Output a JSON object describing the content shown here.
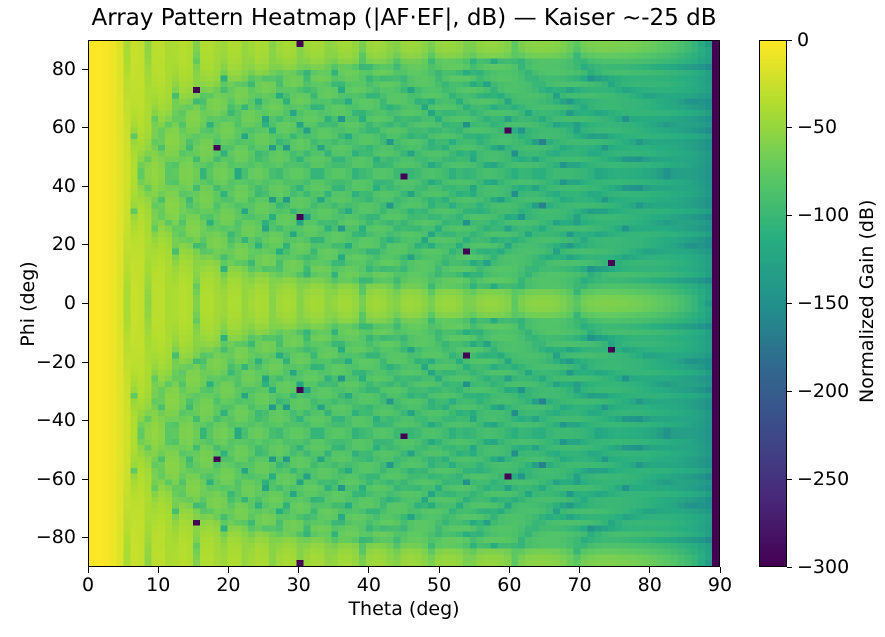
{
  "chart_data": {
    "type": "heatmap",
    "title": "Array Pattern Heatmap (|AF·EF|, dB) — Kaiser ~-25 dB",
    "xlabel": "Theta (deg)",
    "ylabel": "Phi (deg)",
    "x_range": [
      0,
      90
    ],
    "x_step": 1,
    "y_range": [
      -90,
      90
    ],
    "y_step": 2,
    "grid": false,
    "x_ticks": [
      {
        "v": 0,
        "label": "0"
      },
      {
        "v": 10,
        "label": "10"
      },
      {
        "v": 20,
        "label": "20"
      },
      {
        "v": 30,
        "label": "30"
      },
      {
        "v": 40,
        "label": "40"
      },
      {
        "v": 50,
        "label": "50"
      },
      {
        "v": 60,
        "label": "60"
      },
      {
        "v": 70,
        "label": "70"
      },
      {
        "v": 80,
        "label": "80"
      },
      {
        "v": 90,
        "label": "90"
      }
    ],
    "y_ticks": [
      {
        "v": 80,
        "label": "80"
      },
      {
        "v": 60,
        "label": "60"
      },
      {
        "v": 40,
        "label": "40"
      },
      {
        "v": 20,
        "label": "20"
      },
      {
        "v": 0,
        "label": "0"
      },
      {
        "v": -20,
        "label": "−20"
      },
      {
        "v": -40,
        "label": "−40"
      },
      {
        "v": -60,
        "label": "−60"
      },
      {
        "v": -80,
        "label": "−80"
      }
    ],
    "colormap": "viridis",
    "colorbar": {
      "label": "Normalized Gain (dB)",
      "vmin": -300,
      "vmax": 0,
      "ticks": [
        {
          "v": 0,
          "label": "0"
        },
        {
          "v": -50,
          "label": "−50"
        },
        {
          "v": -100,
          "label": "−100"
        },
        {
          "v": -150,
          "label": "−150"
        },
        {
          "v": -200,
          "label": "−200"
        },
        {
          "v": -250,
          "label": "−250"
        },
        {
          "v": -300,
          "label": "−300"
        }
      ]
    },
    "value_model": {
      "description": "Normalized gain dB = 20*log10(|AF_x(u)| * |AF_y(v)| * cos(theta)^q), u = sin(theta)cos(phi), v = sin(theta)sin(phi); Kaiser-tapered (~-25 dB sidelobe) linear array factors on both axes; clipped to [-300, 0] dB; deep -300 dB nulls occur where v hits exact array-factor zeros",
      "elements_per_axis": 32,
      "spacing_wavelengths": 0.5,
      "kaiser_beta": 3.0,
      "element_factor_exponent": 1.5,
      "clip_db": [
        -300,
        0
      ]
    },
    "deep_null_points": [
      [
        15,
        75
      ],
      [
        15,
        -75
      ],
      [
        18,
        54
      ],
      [
        18,
        -54
      ],
      [
        30,
        30
      ],
      [
        30,
        -30
      ],
      [
        30,
        90
      ],
      [
        30,
        -90
      ],
      [
        45,
        45
      ],
      [
        45,
        -45
      ],
      [
        54,
        18
      ],
      [
        54,
        -18
      ],
      [
        60,
        60
      ],
      [
        60,
        -60
      ],
      [
        75,
        15
      ],
      [
        75,
        -15
      ]
    ],
    "viridis_stops": [
      [
        0.0,
        "#440154"
      ],
      [
        0.125,
        "#482878"
      ],
      [
        0.25,
        "#3e4989"
      ],
      [
        0.375,
        "#31688e"
      ],
      [
        0.5,
        "#21918c"
      ],
      [
        0.625,
        "#28ae80"
      ],
      [
        0.75,
        "#5ec962"
      ],
      [
        0.875,
        "#addc30"
      ],
      [
        1.0,
        "#fde725"
      ]
    ]
  }
}
